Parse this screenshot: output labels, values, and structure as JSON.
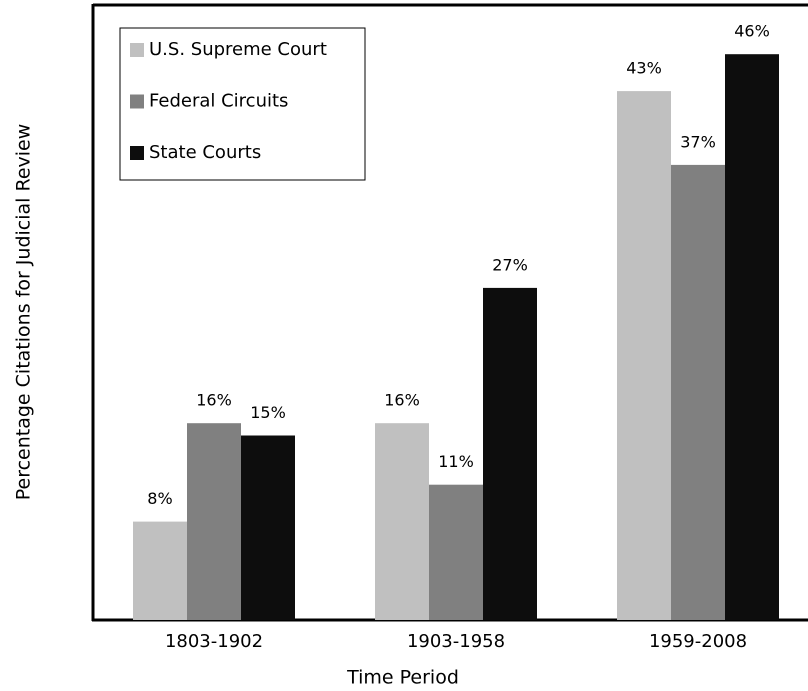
{
  "chart_data": {
    "type": "bar",
    "x_label": "Time Period",
    "y_label": "Percentage Citations for Judicial Review",
    "categories": [
      "1803-1902",
      "1903-1958",
      "1959-2008"
    ],
    "series": [
      {
        "name": "U.S. Supreme Court",
        "color": "#c0c0c0",
        "values": [
          8,
          16,
          43
        ],
        "value_labels": [
          "8%",
          "16%",
          "43%"
        ]
      },
      {
        "name": "Federal Circuits",
        "color": "#808080",
        "values": [
          16,
          11,
          37
        ],
        "value_labels": [
          "16%",
          "11%",
          "37%"
        ]
      },
      {
        "name": "State Courts",
        "color": "#0d0d0d",
        "values": [
          15,
          27,
          46
        ],
        "value_labels": [
          "15%",
          "27%",
          "46%"
        ]
      }
    ],
    "ylim": [
      0,
      50
    ],
    "legend": "upper left"
  }
}
